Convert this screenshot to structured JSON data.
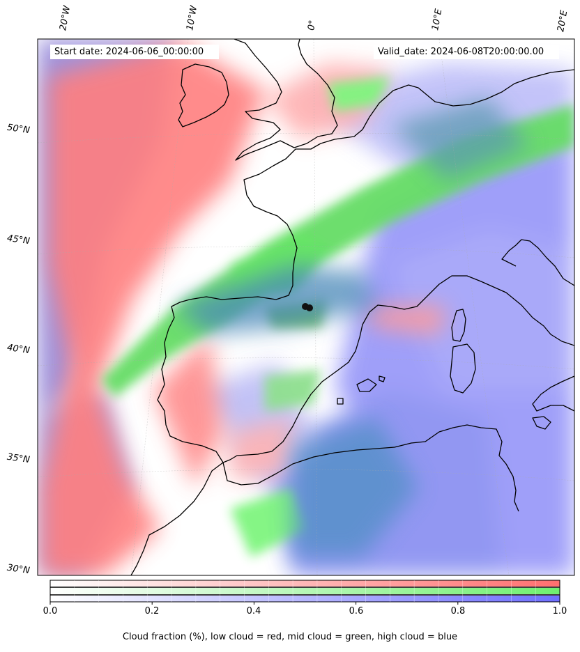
{
  "map": {
    "start_date_label": "Start date: 2024-06-06_00:00:00",
    "valid_date_label": "Valid_date: 2024-06-08T20:00:00.00",
    "longitude_labels": [
      "20°W",
      "10°W",
      "0°",
      "10°E",
      "20°E"
    ],
    "latitude_labels": [
      "50°N",
      "45°N",
      "40°N",
      "35°N",
      "30°N"
    ],
    "layers": {
      "low_cloud": {
        "color": "#ff6f6f"
      },
      "mid_cloud": {
        "color": "#6fef6f"
      },
      "high_cloud": {
        "color": "#6f6fff"
      },
      "coastline": {
        "color": "#000000"
      }
    }
  },
  "colorbar": {
    "ticks": [
      "0.0",
      "0.2",
      "0.4",
      "0.6",
      "0.8",
      "1.0"
    ],
    "range": [
      0.0,
      1.0
    ],
    "caption": "Cloud fraction (%), low cloud = red, mid cloud = green, high cloud = blue",
    "ramps": [
      {
        "name": "low cloud",
        "color": "#ff6f6f"
      },
      {
        "name": "mid cloud",
        "color": "#6fef6f"
      },
      {
        "name": "high cloud",
        "color": "#6f6fff"
      }
    ]
  }
}
